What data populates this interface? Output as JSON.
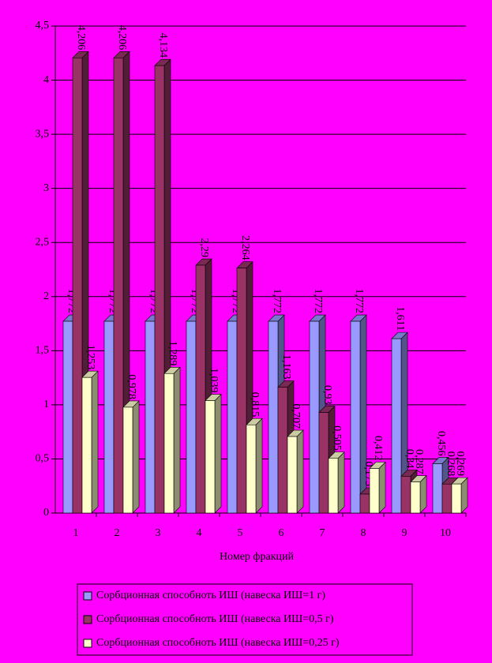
{
  "chart_data": {
    "type": "bar3d",
    "x_label": "Номер фракций",
    "categories": [
      "1",
      "2",
      "3",
      "4",
      "5",
      "6",
      "7",
      "8",
      "9",
      "10"
    ],
    "series": [
      {
        "name": "Сорбционная способноть ИШ (навеска ИШ=1 г)",
        "color": "#9999ff",
        "values": [
          1.772,
          1.772,
          1.772,
          1.772,
          1.772,
          1.772,
          1.772,
          1.772,
          1.611,
          0.456
        ],
        "value_labels": [
          "1,772",
          "1,772",
          "1,772",
          "1,772",
          "1,772",
          "1,772",
          "1,772",
          "1,772",
          "1,611",
          "0,456"
        ]
      },
      {
        "name": "Сорбционная способноть ИШ (навеска ИШ=0,5 г)",
        "color": "#993366",
        "values": [
          4.206,
          4.206,
          4.134,
          2.29,
          2.264,
          1.163,
          0.93,
          0.175,
          0.34,
          0.268
        ],
        "value_labels": [
          "4,206",
          "4,206",
          "4,134",
          "2,29",
          "2,264",
          "1,163",
          "0,93",
          "0,175",
          "0,34",
          "0,268"
        ]
      },
      {
        "name": "Сорбционная способноть ИШ (навеска ИШ=0,25 г)",
        "color": "#ffffcc",
        "values": [
          1.253,
          0.978,
          1.289,
          1.039,
          0.815,
          0.707,
          0.505,
          0.412,
          0.287,
          0.269
        ],
        "value_labels": [
          "1,253",
          "0,978",
          "1,289",
          "1,039",
          "0,815",
          "0,707",
          "0,505",
          "0,412",
          "0,287",
          "0,269"
        ]
      }
    ],
    "ylim": [
      0,
      4.5
    ],
    "yticks": [
      0,
      {
        "value": 0.5,
        "label": "0,5"
      },
      1,
      {
        "value": 1.5,
        "label": "1,5"
      },
      2,
      {
        "value": 2.5,
        "label": "2,5"
      },
      3,
      {
        "value": 3.5,
        "label": "3,5"
      },
      4,
      {
        "value": 4.5,
        "label": "4,5"
      }
    ],
    "grid": true
  }
}
